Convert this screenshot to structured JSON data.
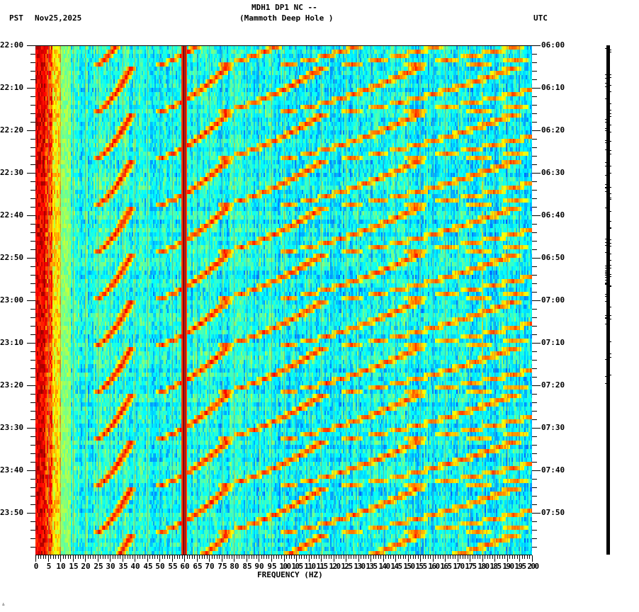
{
  "header": {
    "station": "MDH1 DP1 NC --",
    "location": "(Mammoth Deep Hole )",
    "left_timezone": "PST",
    "date": "Nov25,2025",
    "right_timezone": "UTC"
  },
  "footer_mark": "∴",
  "chart_data": {
    "type": "heatmap",
    "title": "MDH1 DP1 NC -- (Mammoth Deep Hole )",
    "subtitle": "PST Nov25,2025 / UTC",
    "xlabel": "FREQUENCY (HZ)",
    "ylabel_left": "PST",
    "ylabel_right": "UTC",
    "xlim": [
      0,
      200
    ],
    "x_ticks": [
      "0",
      "5",
      "10",
      "15",
      "20",
      "25",
      "30",
      "35",
      "40",
      "45",
      "50",
      "55",
      "60",
      "65",
      "70",
      "75",
      "80",
      "85",
      "90",
      "95",
      "100",
      "105",
      "110",
      "115",
      "120",
      "125",
      "130",
      "135",
      "140",
      "145",
      "150",
      "155",
      "160",
      "165",
      "170",
      "175",
      "180",
      "185",
      "190",
      "195",
      "200"
    ],
    "y_ticks_left": [
      "22:00",
      "22:10",
      "22:20",
      "22:30",
      "22:40",
      "22:50",
      "23:00",
      "23:10",
      "23:20",
      "23:30",
      "23:40",
      "23:50"
    ],
    "y_ticks_right": [
      "06:00",
      "06:10",
      "06:20",
      "06:30",
      "06:40",
      "06:50",
      "07:00",
      "07:10",
      "07:20",
      "07:30",
      "07:40",
      "07:50"
    ],
    "time_range_pst": [
      "22:00",
      "24:00"
    ],
    "time_range_utc": [
      "06:00",
      "08:00"
    ],
    "minor_tick_interval_min": 2,
    "colormap": [
      "#00007f",
      "#0000ff",
      "#007fff",
      "#00ffff",
      "#7fff7f",
      "#ffff00",
      "#ff7f00",
      "#ff0000",
      "#7f0000"
    ],
    "features": {
      "low_freq_energy_hz": [
        0,
        10
      ],
      "persistent_line_hz": 60,
      "minor_line_hz": 180,
      "chirp_sweep_period_min": 11,
      "chirp_harmonics_count": 7,
      "background_level": "cyan/blue"
    }
  }
}
